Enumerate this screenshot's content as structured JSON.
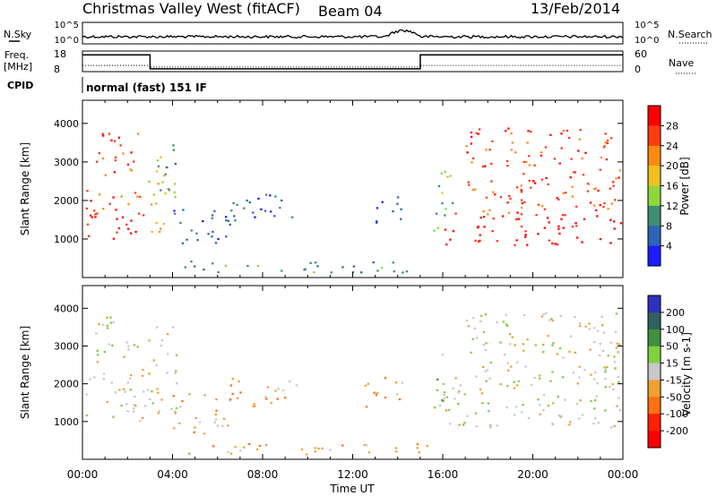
{
  "header": {
    "title": "Christmas Valley West (fitACF)",
    "beam": "Beam 04",
    "date": "13/Feb/2014"
  },
  "status_panels": {
    "nsky_label": "N.Sky",
    "nsearch_label": "N.Search",
    "log_ticks": [
      "10^5",
      "10^0"
    ],
    "freq_label": "Freq.",
    "freq_unit": "[MHz]",
    "freq_ticks": [
      "18",
      "8"
    ],
    "nave_label": "Nave",
    "nave_ticks": [
      "60",
      "0"
    ],
    "cpid_label": "CPID",
    "cpid_value": "normal (fast) 151 IF"
  },
  "chart_data": [
    {
      "type": "line",
      "panel": "frequency-nave",
      "x_hours": [
        0,
        3,
        3,
        15,
        15,
        24
      ],
      "freq_mhz": [
        11,
        11,
        10.2,
        10.2,
        11,
        11
      ],
      "nave": [
        49,
        49,
        8,
        8,
        49,
        49
      ],
      "xlim": [
        0,
        24
      ],
      "freq_ylim": [
        8,
        18
      ],
      "nave_ylim": [
        0,
        60
      ]
    },
    {
      "type": "heatmap",
      "panel": "power",
      "ylabel": "Slant Range [km]",
      "yticks": [
        "1000",
        "2000",
        "3000",
        "4000"
      ],
      "ylim": [
        0,
        4600
      ],
      "colorbar_label": "Power [dB]",
      "colorbar_ticks": [
        "4",
        "8",
        "12",
        "16",
        "20",
        "24",
        "28"
      ],
      "colors": [
        "#1c1cff",
        "#2e64b8",
        "#3f8e70",
        "#8ed83a",
        "#f0c020",
        "#ff8a10",
        "#ff3a10",
        "#ff0000"
      ],
      "regions": [
        {
          "t0": 0.1,
          "t1": 2.9,
          "r0": 1000,
          "r1": 1600,
          "level": 7
        },
        {
          "t0": 0.1,
          "t1": 2.9,
          "r0": 1600,
          "r1": 2400,
          "level": 6
        },
        {
          "t0": 0.4,
          "t1": 2.5,
          "r0": 2600,
          "r1": 3800,
          "level": 6
        },
        {
          "t0": 2.9,
          "t1": 3.8,
          "r0": 1200,
          "r1": 3400,
          "level": 4
        },
        {
          "t0": 3.2,
          "t1": 4.2,
          "r0": 2000,
          "r1": 3600,
          "level": 2
        },
        {
          "t0": 4.0,
          "t1": 6.6,
          "r0": 700,
          "r1": 1800,
          "level": 1
        },
        {
          "t0": 6.5,
          "t1": 9.5,
          "r0": 1400,
          "r1": 2200,
          "level": 1
        },
        {
          "t0": 4.5,
          "t1": 15.5,
          "r0": 150,
          "r1": 450,
          "level": 2
        },
        {
          "t0": 13.0,
          "t1": 14.3,
          "r0": 1400,
          "r1": 2200,
          "level": 1
        },
        {
          "t0": 15.5,
          "t1": 16.5,
          "r0": 1200,
          "r1": 2800,
          "level": 3
        },
        {
          "t0": 16.0,
          "t1": 23.9,
          "r0": 850,
          "r1": 1600,
          "level": 7
        },
        {
          "t0": 16.0,
          "t1": 23.9,
          "r0": 1600,
          "r1": 2200,
          "level": 6
        },
        {
          "t0": 17.0,
          "t1": 23.9,
          "r0": 2200,
          "r1": 3900,
          "level": 6
        }
      ]
    },
    {
      "type": "heatmap",
      "panel": "velocity",
      "ylabel": "Slant Range [km]",
      "yticks": [
        "1000",
        "2000",
        "3000",
        "4000"
      ],
      "ylim": [
        0,
        4600
      ],
      "xlabel": "Time UT",
      "xticks": [
        "00:00",
        "04:00",
        "08:00",
        "12:00",
        "16:00",
        "20:00",
        "00:00"
      ],
      "xlim": [
        0,
        24
      ],
      "colorbar_label": "Velocity [m s-1]",
      "colorbar_ticks": [
        "200",
        "100",
        "50",
        "15",
        "-15",
        "-50",
        "-100",
        "-200"
      ],
      "colors": [
        "#3030c0",
        "#306060",
        "#409040",
        "#80d040",
        "#c8c8c8",
        "#f0a030",
        "#ff7010",
        "#ff2000",
        "#ff0000"
      ],
      "regions": [
        {
          "t0": 0.1,
          "t1": 2.9,
          "r0": 1000,
          "r1": 1600,
          "level": 4
        },
        {
          "t0": 0.1,
          "t1": 2.9,
          "r0": 1600,
          "r1": 2400,
          "level": 4
        },
        {
          "t0": 0.4,
          "t1": 2.5,
          "r0": 2600,
          "r1": 3800,
          "level": 4
        },
        {
          "t0": 2.9,
          "t1": 4.2,
          "r0": 1200,
          "r1": 3600,
          "level": 4
        },
        {
          "t0": 4.0,
          "t1": 6.6,
          "r0": 700,
          "r1": 1800,
          "level": 5
        },
        {
          "t0": 6.5,
          "t1": 9.5,
          "r0": 1400,
          "r1": 2200,
          "level": 5
        },
        {
          "t0": 4.5,
          "t1": 15.5,
          "r0": 150,
          "r1": 450,
          "level": 5
        },
        {
          "t0": 12.5,
          "t1": 14.3,
          "r0": 1400,
          "r1": 2200,
          "level": 5
        },
        {
          "t0": 15.5,
          "t1": 16.5,
          "r0": 1200,
          "r1": 2800,
          "level": 3
        },
        {
          "t0": 16.0,
          "t1": 23.9,
          "r0": 850,
          "r1": 1600,
          "level": 4
        },
        {
          "t0": 16.0,
          "t1": 23.9,
          "r0": 1600,
          "r1": 2200,
          "level": 4
        },
        {
          "t0": 17.0,
          "t1": 23.9,
          "r0": 2200,
          "r1": 3900,
          "level": 4
        }
      ]
    }
  ]
}
